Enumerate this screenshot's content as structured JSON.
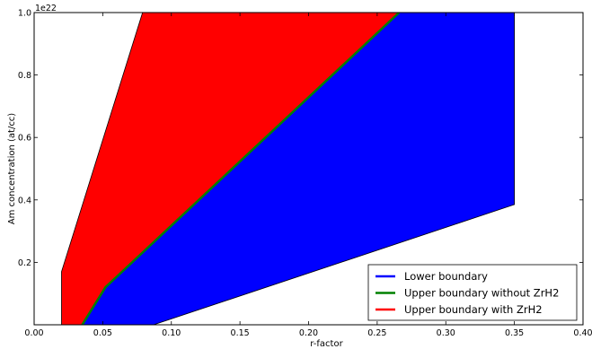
{
  "chart_data": {
    "type": "area",
    "xlabel": "r-factor",
    "ylabel": "Am concentration (at/cc)",
    "offset_text": "1e22",
    "xlim": [
      0.0,
      0.4
    ],
    "ylim": [
      0.0,
      1.0
    ],
    "x_ticks": [
      0.0,
      0.05,
      0.1,
      0.15,
      0.2,
      0.25,
      0.3,
      0.35,
      0.4
    ],
    "x_tick_labels": [
      "0.00",
      "0.05",
      "0.10",
      "0.15",
      "0.20",
      "0.25",
      "0.30",
      "0.35",
      "0.40"
    ],
    "y_ticks": [
      0.2,
      0.4,
      0.6,
      0.8,
      1.0
    ],
    "y_tick_labels": [
      "0.2",
      "0.4",
      "0.6",
      "0.8",
      "1.0"
    ],
    "grid": false,
    "legend_position": "bottom-right",
    "series": [
      {
        "name": "Lower boundary",
        "color": "#0000ff",
        "points": [
          [
            0.035,
            0.0
          ],
          [
            0.087,
            0.0
          ],
          [
            0.35,
            0.385
          ],
          [
            0.35,
            1.0
          ],
          [
            0.266,
            1.0
          ],
          [
            0.052,
            0.12
          ],
          [
            0.035,
            0.0
          ]
        ]
      },
      {
        "name": "Upper boundary without ZrH2",
        "color": "#008000",
        "points": [
          [
            0.035,
            0.0
          ],
          [
            0.052,
            0.12
          ],
          [
            0.266,
            1.0
          ]
        ]
      },
      {
        "name": "Upper boundary with ZrH2",
        "color": "#ff0000",
        "points": [
          [
            0.02,
            0.0
          ],
          [
            0.02,
            0.17
          ],
          [
            0.079,
            1.0
          ],
          [
            0.266,
            1.0
          ],
          [
            0.052,
            0.12
          ],
          [
            0.035,
            0.0
          ]
        ]
      }
    ]
  }
}
